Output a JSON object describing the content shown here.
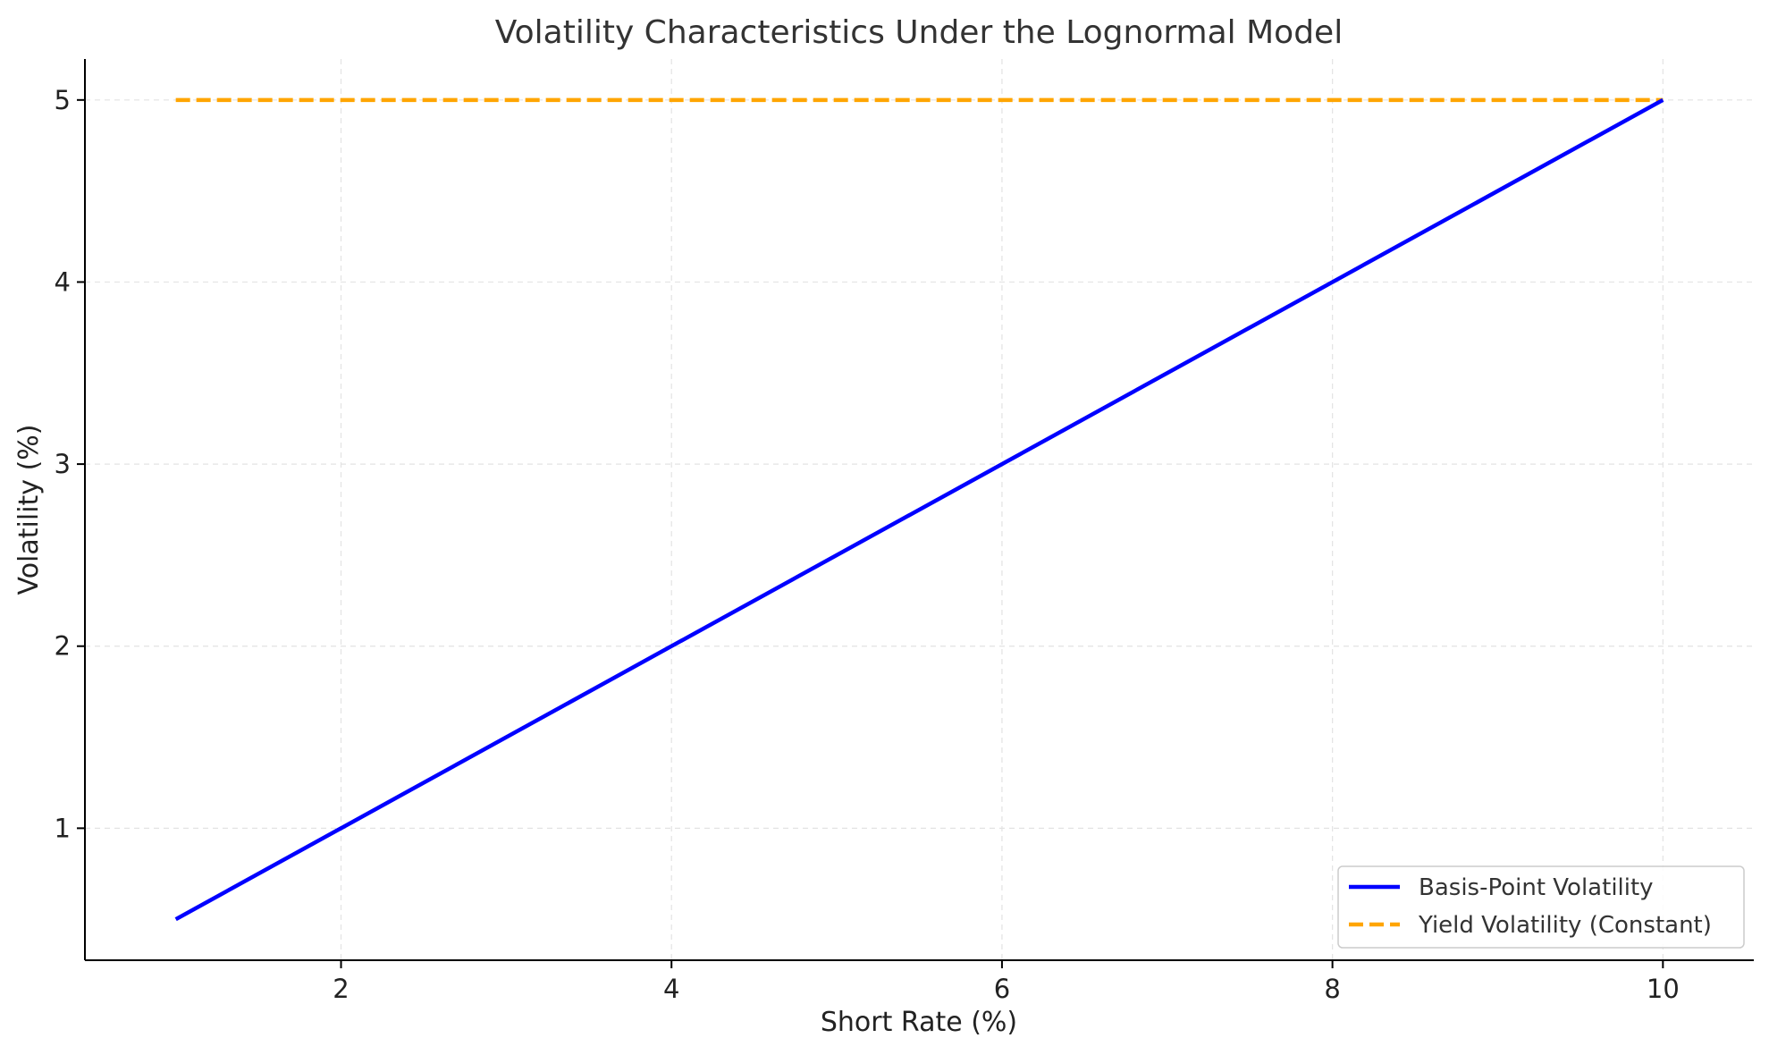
{
  "chart_data": {
    "type": "line",
    "title": "Volatility Characteristics Under the Lognormal Model",
    "xlabel": "Short Rate (%)",
    "ylabel": "Volatility (%)",
    "xlim": [
      0.45,
      10.55
    ],
    "ylim": [
      0.275,
      5.225
    ],
    "xticks": [
      2,
      4,
      6,
      8,
      10
    ],
    "yticks": [
      1,
      2,
      3,
      4,
      5
    ],
    "grid": true,
    "legend_position": "lower-right",
    "series": [
      {
        "name": "Basis-Point Volatility",
        "color": "#0000ff",
        "style": "solid",
        "x": [
          1,
          10
        ],
        "y": [
          0.5,
          5
        ]
      },
      {
        "name": "Yield Volatility (Constant)",
        "color": "#ffa500",
        "style": "dashed",
        "x": [
          1,
          10
        ],
        "y": [
          5,
          5
        ]
      }
    ]
  }
}
